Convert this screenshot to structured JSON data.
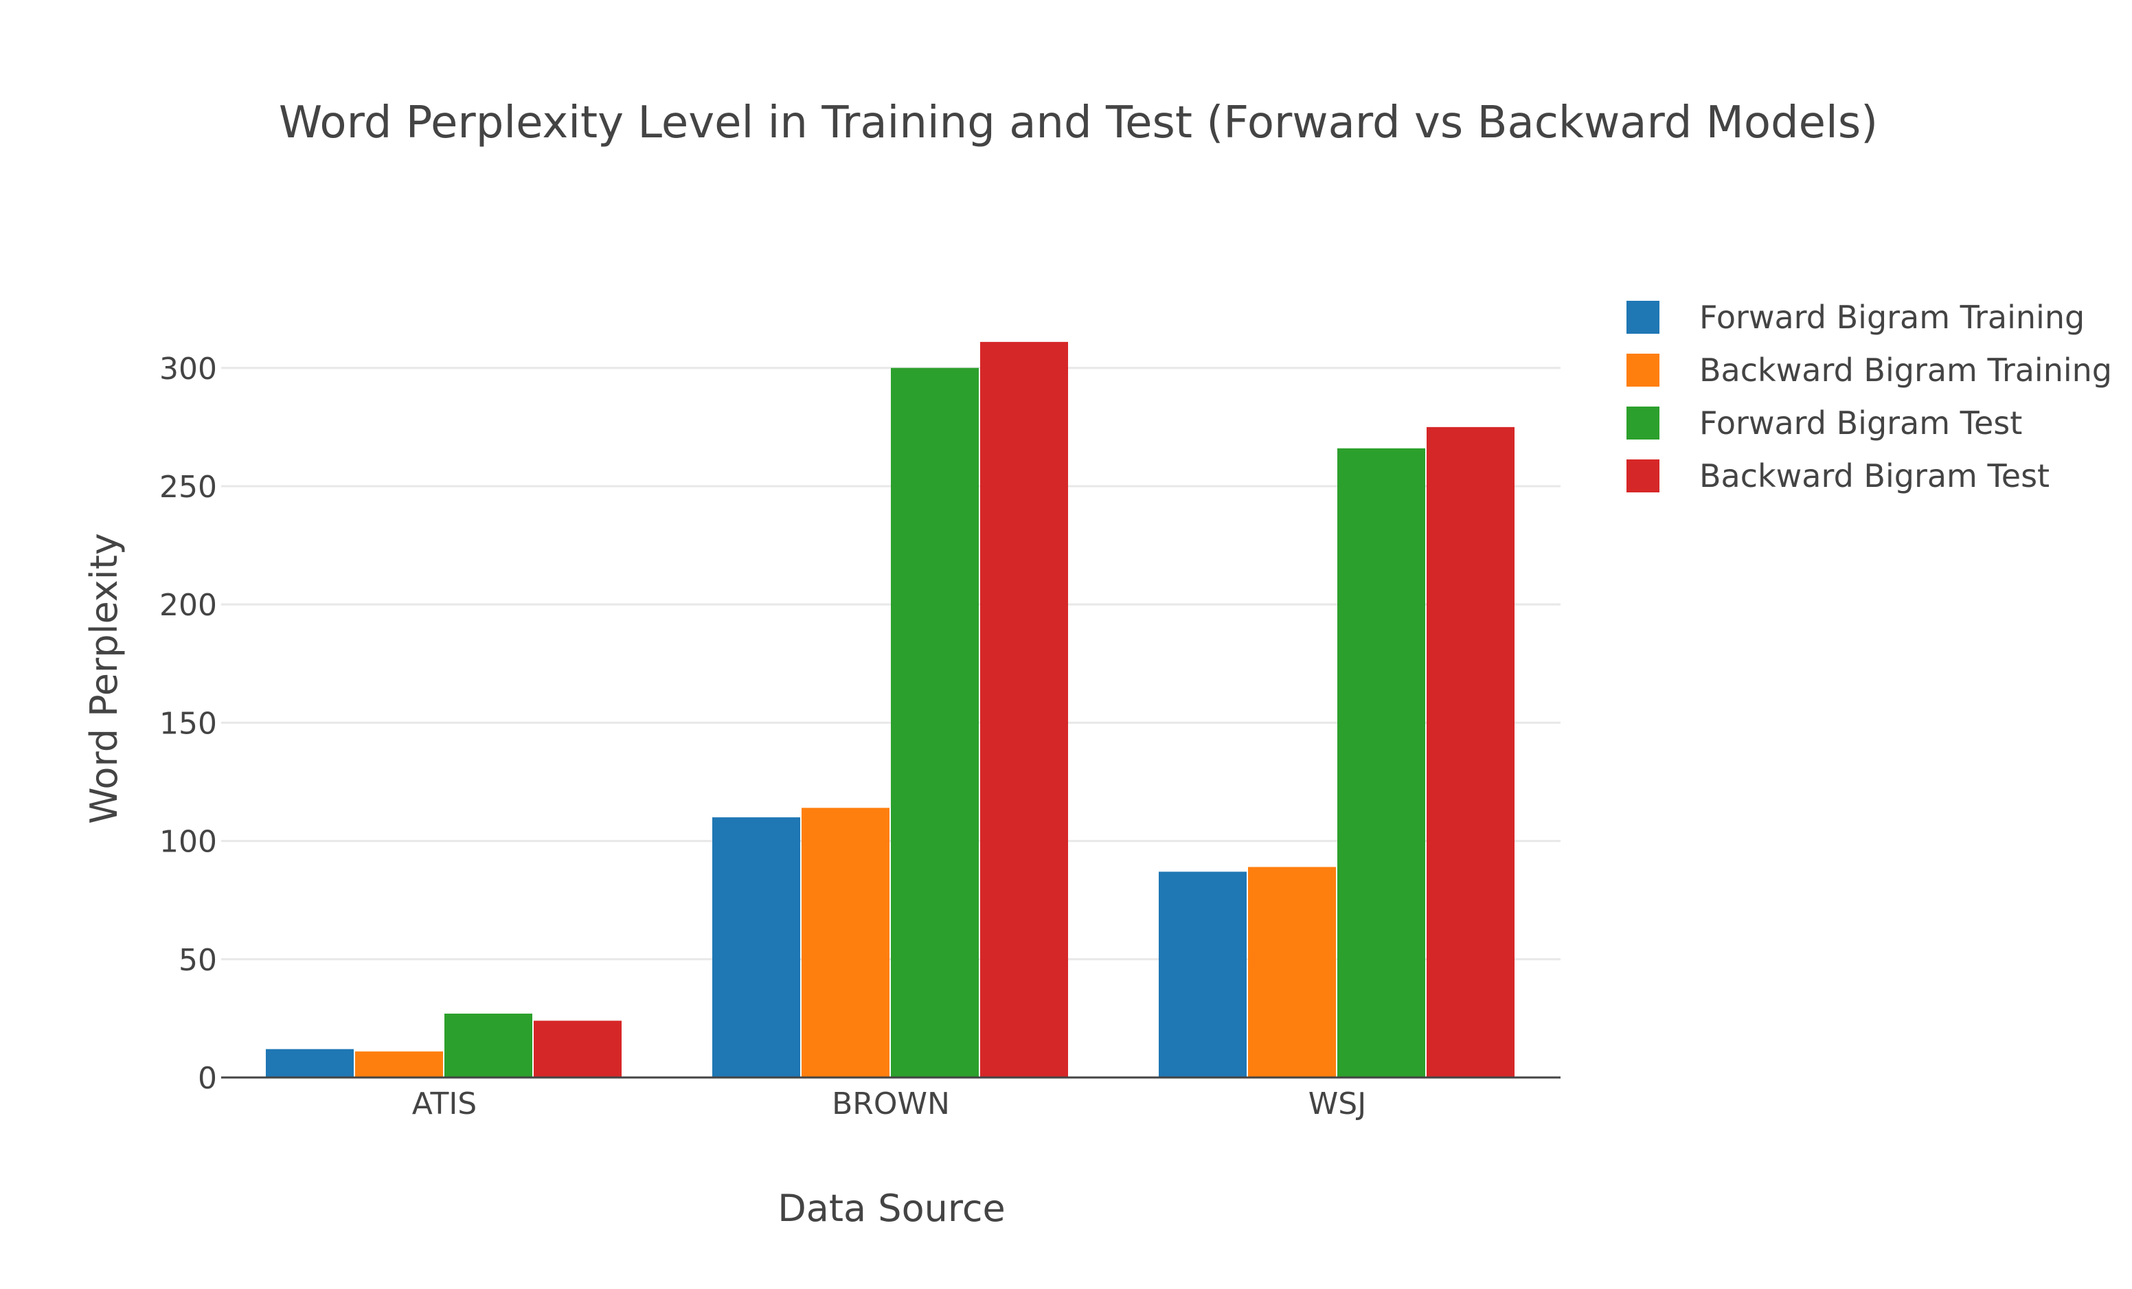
{
  "chart_data": {
    "type": "bar",
    "title": "Word Perplexity Level in Training and Test (Forward vs Backward Models)",
    "xlabel": "Data Source",
    "ylabel": "Word Perplexity",
    "categories": [
      "ATIS",
      "BROWN",
      "WSJ"
    ],
    "series": [
      {
        "name": "Forward Bigram Training",
        "color": "#1f77b4",
        "values": [
          12,
          110,
          87
        ]
      },
      {
        "name": "Backward Bigram Training",
        "color": "#ff7f0e",
        "values": [
          11,
          114,
          89
        ]
      },
      {
        "name": "Forward Bigram Test",
        "color": "#2ca02c",
        "values": [
          27,
          300,
          266
        ]
      },
      {
        "name": "Backward Bigram Test",
        "color": "#d62728",
        "values": [
          24,
          311,
          275
        ]
      }
    ],
    "ylim": [
      0,
      322
    ],
    "yticks": [
      0,
      50,
      100,
      150,
      200,
      250,
      300
    ],
    "grid": true,
    "legend_position": "right"
  }
}
